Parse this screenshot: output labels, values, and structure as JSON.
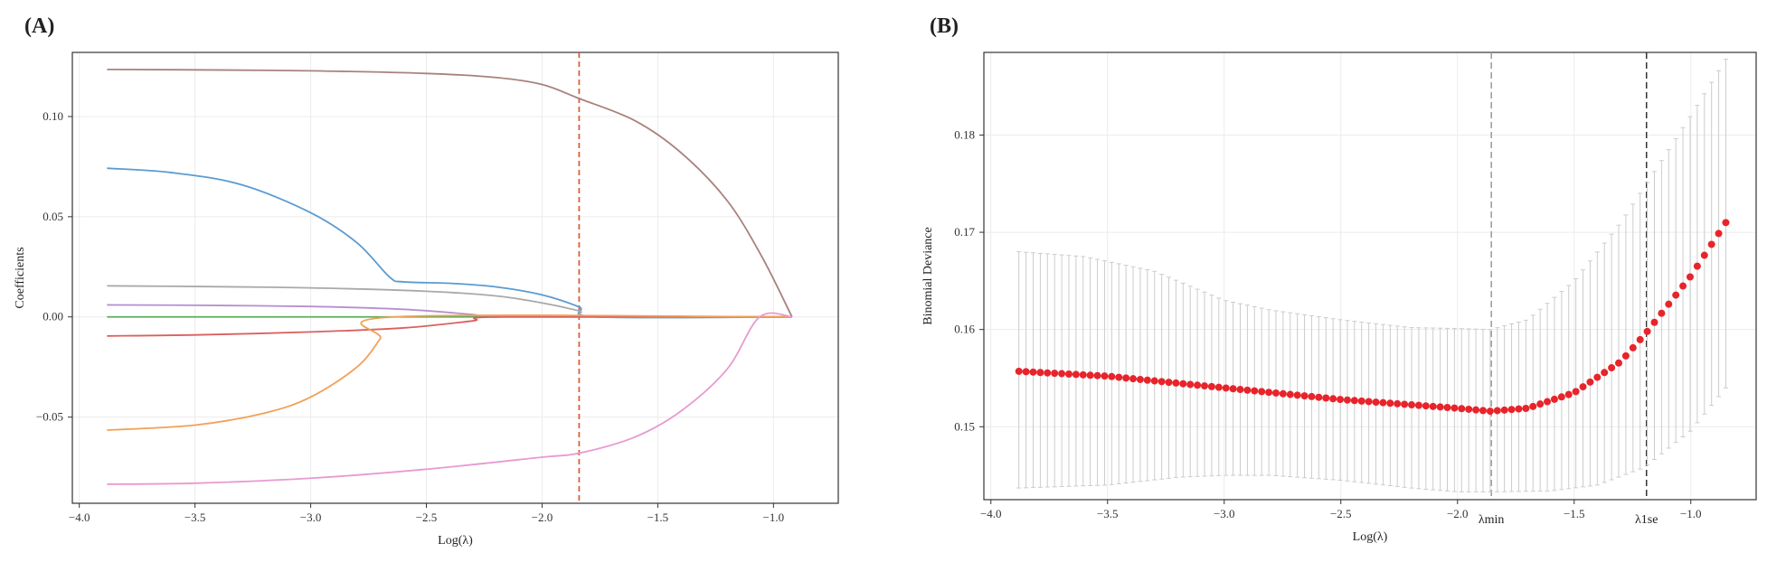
{
  "chart_data": [
    {
      "panel": "(A)",
      "type": "line",
      "xlabel": "Log(λ)",
      "ylabel": "Coefficients",
      "xlim": [
        -4.03,
        -0.72
      ],
      "ylim": [
        -0.093,
        0.132
      ],
      "xticks": [
        -4.0,
        -3.5,
        -3.0,
        -2.5,
        -2.0,
        -1.5,
        -1.0
      ],
      "yticks": [
        -0.05,
        0.0,
        0.05,
        0.1
      ],
      "ytick_labels": [
        "−0.05",
        "0.00",
        "0.05",
        "0.10"
      ],
      "xtick_labels": [
        "−4.0",
        "−3.5",
        "−3.0",
        "−2.5",
        "−2.0",
        "−1.5",
        "−1.0"
      ],
      "grid": true,
      "vline": {
        "x": -1.84,
        "color": "#d9603b",
        "style": "dashed"
      },
      "x_range": [
        -3.88,
        -0.92
      ],
      "series": [
        {
          "color": "#a8827c",
          "points": [
            [
              -3.88,
              0.1235
            ],
            [
              -3.5,
              0.1233
            ],
            [
              -3.0,
              0.1228
            ],
            [
              -2.5,
              0.1215
            ],
            [
              -2.2,
              0.1195
            ],
            [
              -2.0,
              0.116
            ],
            [
              -1.84,
              0.109
            ],
            [
              -1.6,
              0.098
            ],
            [
              -1.4,
              0.082
            ],
            [
              -1.2,
              0.058
            ],
            [
              -1.05,
              0.03
            ],
            [
              -0.92,
              0.0
            ]
          ]
        },
        {
          "color": "#5b9bd0",
          "points": [
            [
              -3.88,
              0.0742
            ],
            [
              -3.6,
              0.072
            ],
            [
              -3.3,
              0.066
            ],
            [
              -3.0,
              0.052
            ],
            [
              -2.8,
              0.037
            ],
            [
              -2.66,
              0.02
            ],
            [
              -2.6,
              0.0175
            ],
            [
              -2.4,
              0.0168
            ],
            [
              -2.2,
              0.015
            ],
            [
              -2.0,
              0.011
            ],
            [
              -1.84,
              0.005
            ],
            [
              -1.76,
              0.0
            ],
            [
              -0.92,
              0.0
            ]
          ]
        },
        {
          "color": "#a9a9a9",
          "points": [
            [
              -3.88,
              0.0155
            ],
            [
              -3.5,
              0.0152
            ],
            [
              -3.0,
              0.0145
            ],
            [
              -2.5,
              0.0128
            ],
            [
              -2.2,
              0.0105
            ],
            [
              -2.0,
              0.007
            ],
            [
              -1.84,
              0.003
            ],
            [
              -1.76,
              0.0
            ],
            [
              -0.92,
              0.0
            ]
          ]
        },
        {
          "color": "#b78fd0",
          "points": [
            [
              -3.88,
              0.006
            ],
            [
              -3.5,
              0.0058
            ],
            [
              -3.0,
              0.0052
            ],
            [
              -2.6,
              0.0038
            ],
            [
              -2.3,
              0.0012
            ],
            [
              -2.18,
              0.0
            ],
            [
              -0.92,
              0.0
            ]
          ]
        },
        {
          "color": "#5cae5c",
          "points": [
            [
              -3.88,
              0.0
            ],
            [
              -0.92,
              0.0
            ]
          ]
        },
        {
          "color": "#d9605e",
          "points": [
            [
              -3.88,
              -0.0095
            ],
            [
              -3.5,
              -0.009
            ],
            [
              -3.0,
              -0.0075
            ],
            [
              -2.6,
              -0.0055
            ],
            [
              -2.3,
              -0.002
            ],
            [
              -2.17,
              0.0
            ],
            [
              -0.92,
              0.0
            ]
          ]
        },
        {
          "color": "#f2a056",
          "points": [
            [
              -3.88,
              -0.0565
            ],
            [
              -3.5,
              -0.054
            ],
            [
              -3.2,
              -0.048
            ],
            [
              -3.0,
              -0.04
            ],
            [
              -2.8,
              -0.025
            ],
            [
              -2.7,
              -0.011
            ],
            [
              -2.64,
              0.0
            ],
            [
              -0.92,
              0.0
            ]
          ]
        },
        {
          "color": "#e89ad0",
          "points": [
            [
              -3.88,
              -0.0835
            ],
            [
              -3.5,
              -0.083
            ],
            [
              -3.0,
              -0.0805
            ],
            [
              -2.5,
              -0.076
            ],
            [
              -2.0,
              -0.07
            ],
            [
              -1.84,
              -0.068
            ],
            [
              -1.6,
              -0.06
            ],
            [
              -1.4,
              -0.047
            ],
            [
              -1.2,
              -0.026
            ],
            [
              -1.06,
              0.0
            ],
            [
              -0.92,
              0.0
            ]
          ]
        }
      ]
    },
    {
      "panel": "(B)",
      "type": "scatter",
      "xlabel": "Log(λ)",
      "ylabel": "Binomial Deviance",
      "xlim": [
        -4.03,
        -0.72
      ],
      "ylim": [
        0.1425,
        0.1885
      ],
      "xticks": [
        -4.0,
        -3.5,
        -3.0,
        -2.5,
        -2.0,
        -1.5,
        -1.0
      ],
      "xtick_labels": [
        "−4.0",
        "−3.5",
        "−3.0",
        "−2.5",
        "−2.0",
        "−1.5",
        "−1.0"
      ],
      "yticks": [
        0.15,
        0.16,
        0.17,
        0.18
      ],
      "ytick_labels": [
        "0.15",
        "0.16",
        "0.17",
        "0.18"
      ],
      "grid": true,
      "vlines": [
        {
          "label": "λmin",
          "x": -1.855,
          "color": "#999999"
        },
        {
          "label": "λ1se",
          "x": -1.19,
          "color": "#333333"
        }
      ],
      "x_range": [
        -3.88,
        -0.85
      ],
      "n_points": 100,
      "mean_curve": [
        [
          -3.88,
          0.1557
        ],
        [
          -3.5,
          0.1552
        ],
        [
          -3.0,
          0.154
        ],
        [
          -2.5,
          0.1528
        ],
        [
          -2.0,
          0.1519
        ],
        [
          -1.86,
          0.1516
        ],
        [
          -1.7,
          0.1519
        ],
        [
          -1.5,
          0.1535
        ],
        [
          -1.3,
          0.1567
        ],
        [
          -1.19,
          0.1597
        ],
        [
          -1.0,
          0.1655
        ],
        [
          -0.85,
          0.171
        ]
      ],
      "err_low": [
        [
          -3.88,
          0.1437
        ],
        [
          -3.5,
          0.144
        ],
        [
          -3.2,
          0.1448
        ],
        [
          -3.0,
          0.145
        ],
        [
          -2.8,
          0.145
        ],
        [
          -2.5,
          0.1445
        ],
        [
          -2.2,
          0.1437
        ],
        [
          -2.0,
          0.1433
        ],
        [
          -1.86,
          0.1433
        ],
        [
          -1.6,
          0.1434
        ],
        [
          -1.4,
          0.144
        ],
        [
          -1.2,
          0.1458
        ],
        [
          -1.0,
          0.1496
        ],
        [
          -0.85,
          0.154
        ]
      ],
      "err_high": [
        [
          -3.88,
          0.168
        ],
        [
          -3.6,
          0.1675
        ],
        [
          -3.3,
          0.166
        ],
        [
          -3.0,
          0.163
        ],
        [
          -2.8,
          0.162
        ],
        [
          -2.5,
          0.161
        ],
        [
          -2.2,
          0.1602
        ],
        [
          -2.0,
          0.1601
        ],
        [
          -1.86,
          0.16
        ],
        [
          -1.7,
          0.161
        ],
        [
          -1.5,
          0.165
        ],
        [
          -1.3,
          0.171
        ],
        [
          -1.19,
          0.175
        ],
        [
          -1.0,
          0.182
        ],
        [
          -0.85,
          0.1878
        ]
      ],
      "point_color": "#e8242b",
      "errorbar_color": "#cccccc"
    }
  ]
}
